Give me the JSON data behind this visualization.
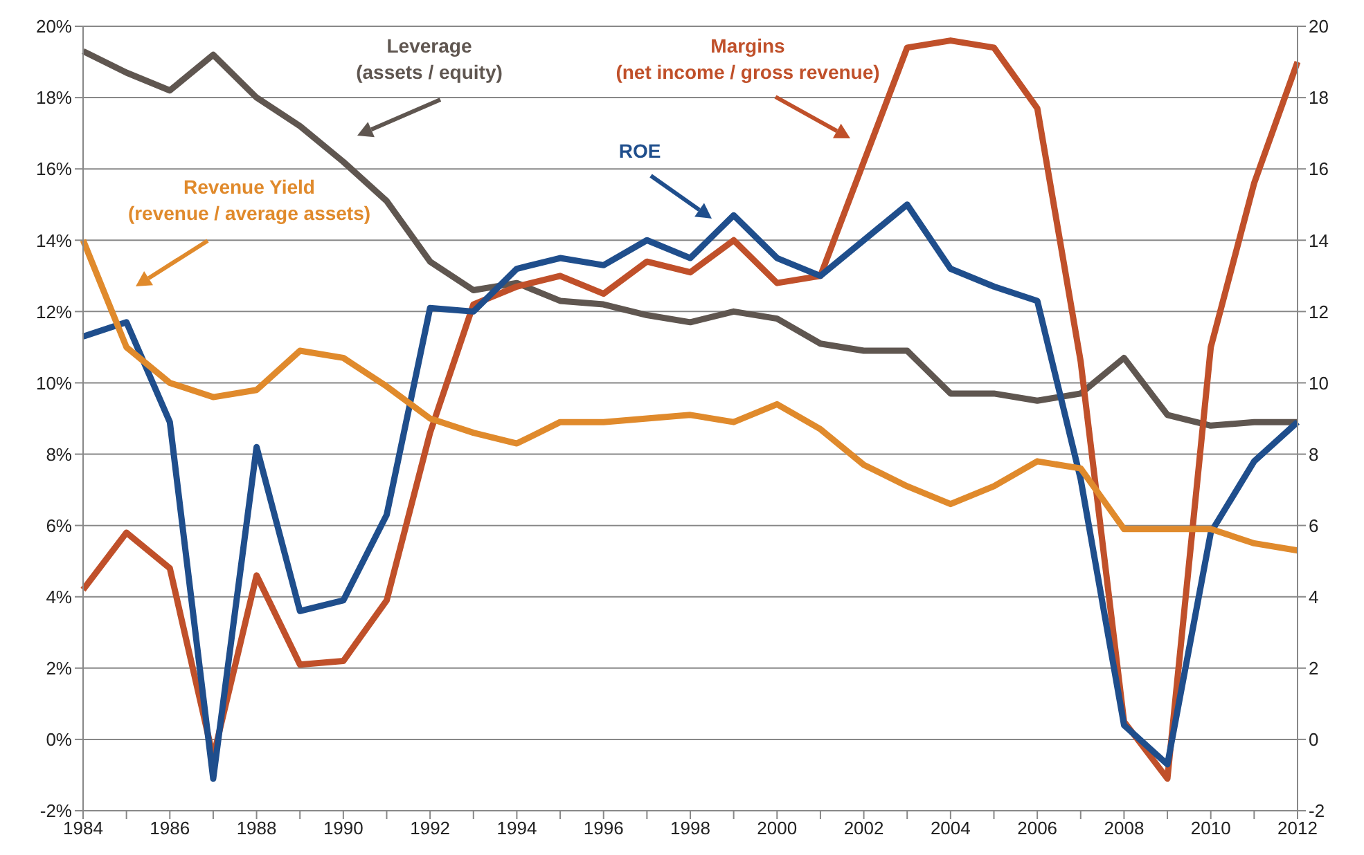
{
  "chart_data": {
    "type": "line",
    "categories": [
      "1984",
      null,
      "1986",
      null,
      "1988",
      null,
      "1990",
      null,
      "1992",
      null,
      "1994",
      null,
      "1996",
      null,
      "1998",
      null,
      "2000",
      null,
      "2002",
      null,
      "2004",
      null,
      "2006",
      null,
      "2008",
      null,
      "2010",
      null,
      "2012"
    ],
    "series": [
      {
        "name": "Leverage (assets / equity)",
        "color": "#5f5650",
        "axis": "y2",
        "values": [
          19.3,
          18.7,
          18.2,
          19.2,
          18.0,
          17.2,
          16.2,
          15.1,
          13.4,
          12.6,
          12.8,
          12.3,
          12.2,
          11.9,
          11.7,
          12.0,
          11.8,
          11.1,
          10.9,
          10.9,
          9.7,
          9.7,
          9.5,
          9.7,
          10.7,
          9.1,
          8.8,
          8.9,
          8.9
        ]
      },
      {
        "name": "Margins (net income / gross revenue)",
        "color": "#c0502a",
        "values": [
          4.2,
          5.8,
          4.8,
          -0.5,
          4.6,
          2.1,
          2.2,
          3.9,
          8.6,
          12.2,
          12.7,
          13.0,
          12.5,
          13.4,
          13.1,
          14.0,
          12.8,
          13.0,
          16.2,
          19.4,
          19.6,
          19.4,
          17.7,
          10.6,
          0.5,
          -1.1,
          11.0,
          15.6,
          19.0
        ]
      },
      {
        "name": "ROE",
        "color": "#1f4e8c",
        "values": [
          11.3,
          11.7,
          8.9,
          -1.1,
          8.2,
          3.6,
          3.9,
          6.3,
          12.1,
          12.0,
          13.2,
          13.5,
          13.3,
          14.0,
          13.5,
          14.7,
          13.5,
          13.0,
          14.0,
          15.0,
          13.2,
          12.7,
          12.3,
          7.3,
          0.4,
          -0.7,
          5.8,
          7.8,
          8.9
        ]
      },
      {
        "name": "Revenue Yield (revenue / average assets)",
        "color": "#e08a2c",
        "values": [
          14.0,
          11.0,
          10.0,
          9.6,
          9.8,
          10.9,
          10.7,
          9.9,
          9.0,
          8.6,
          8.3,
          8.9,
          8.9,
          9.0,
          9.1,
          8.9,
          9.4,
          8.7,
          7.7,
          7.1,
          6.6,
          7.1,
          7.8,
          7.6,
          5.9,
          5.9,
          5.9,
          5.5,
          5.3
        ]
      }
    ],
    "ylim": [
      -2,
      20
    ],
    "yticks": [
      {
        "value": -2,
        "label": "-2%"
      },
      {
        "value": 0,
        "label": "0%"
      },
      {
        "value": 2,
        "label": "2%"
      },
      {
        "value": 4,
        "label": "4%"
      },
      {
        "value": 6,
        "label": "6%"
      },
      {
        "value": 8,
        "label": "8%"
      },
      {
        "value": 10,
        "label": "10%"
      },
      {
        "value": 12,
        "label": "12%"
      },
      {
        "value": 14,
        "label": "14%"
      },
      {
        "value": 16,
        "label": "16%"
      },
      {
        "value": 18,
        "label": "18%"
      },
      {
        "value": 20,
        "label": "20%"
      }
    ],
    "y2lim": [
      -2,
      20
    ],
    "y2ticks": [
      -2,
      0,
      2,
      4,
      6,
      8,
      10,
      12,
      14,
      16,
      18,
      20
    ],
    "grid": "y",
    "legend": false,
    "marker": "none",
    "line_style": "solid"
  }
}
